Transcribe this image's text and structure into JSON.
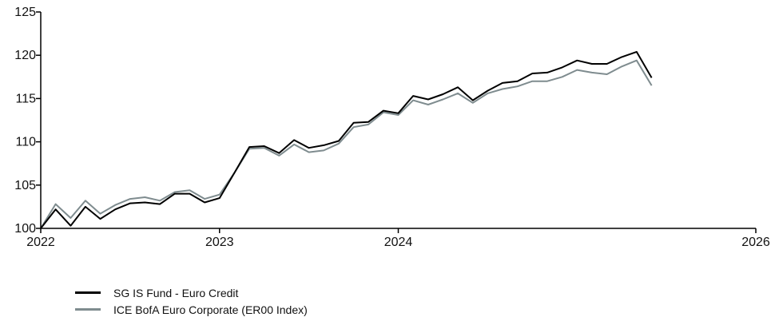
{
  "chart_data": {
    "type": "line",
    "title": "",
    "xlabel": "",
    "ylabel": "",
    "xlim": [
      2022,
      2026
    ],
    "ylim": [
      100,
      125
    ],
    "x_ticks": [
      {
        "value": 2022,
        "label": "2022"
      },
      {
        "value": 2023,
        "label": "2023"
      },
      {
        "value": 2024,
        "label": "2024"
      },
      {
        "value": 2026,
        "label": "2026"
      }
    ],
    "y_ticks": [
      {
        "value": 100,
        "label": "100"
      },
      {
        "value": 105,
        "label": "105"
      },
      {
        "value": 110,
        "label": "110"
      },
      {
        "value": 115,
        "label": "115"
      },
      {
        "value": 120,
        "label": "120"
      },
      {
        "value": 125,
        "label": "125"
      }
    ],
    "grid": false,
    "legend_position": "bottom-left",
    "x": [
      2022.0,
      2022.083,
      2022.167,
      2022.25,
      2022.333,
      2022.417,
      2022.5,
      2022.583,
      2022.667,
      2022.75,
      2022.833,
      2022.917,
      2023.0,
      2023.083,
      2023.167,
      2023.25,
      2023.333,
      2023.417,
      2023.5,
      2023.583,
      2023.667,
      2023.75,
      2023.833,
      2023.917,
      2024.0,
      2024.083,
      2024.167,
      2024.25,
      2024.333,
      2024.417,
      2024.5,
      2024.583,
      2024.667,
      2024.75,
      2024.833,
      2024.917,
      2025.0,
      2025.083,
      2025.167,
      2025.25,
      2025.333,
      2025.417,
      2025.5,
      2025.583,
      2025.667,
      2025.75,
      2025.833,
      2025.917,
      2026.0
    ],
    "series": [
      {
        "name": "SG IS Fund - Euro Credit",
        "color": "#000000",
        "values": [
          100.0,
          102.2,
          100.3,
          102.5,
          101.1,
          102.2,
          102.9,
          103.0,
          102.8,
          104.0,
          104.0,
          103.0,
          103.5,
          106.4,
          109.4,
          109.5,
          108.7,
          110.2,
          109.3,
          109.6,
          110.1,
          112.2,
          112.3,
          113.6,
          113.3,
          115.3,
          114.9,
          115.5,
          116.3,
          114.8,
          115.9,
          116.8,
          117.0,
          117.9,
          118.0,
          118.6,
          119.4,
          119.0,
          119.0,
          119.8,
          120.4,
          117.4,
          null,
          null,
          null,
          null,
          null,
          null,
          null
        ]
      },
      {
        "name": "ICE BofA Euro Corporate (ER00 Index)",
        "color": "#7f8c8f",
        "values": [
          100.0,
          102.8,
          101.2,
          103.2,
          101.7,
          102.7,
          103.4,
          103.6,
          103.2,
          104.2,
          104.4,
          103.4,
          103.9,
          106.4,
          109.2,
          109.3,
          108.4,
          109.7,
          108.8,
          109.0,
          109.8,
          111.7,
          112.0,
          113.4,
          113.1,
          114.8,
          114.3,
          114.9,
          115.6,
          114.5,
          115.6,
          116.1,
          116.4,
          117.0,
          117.0,
          117.5,
          118.3,
          118.0,
          117.8,
          118.7,
          119.4,
          116.5,
          null,
          null,
          null,
          null,
          null,
          null,
          null
        ]
      }
    ]
  }
}
